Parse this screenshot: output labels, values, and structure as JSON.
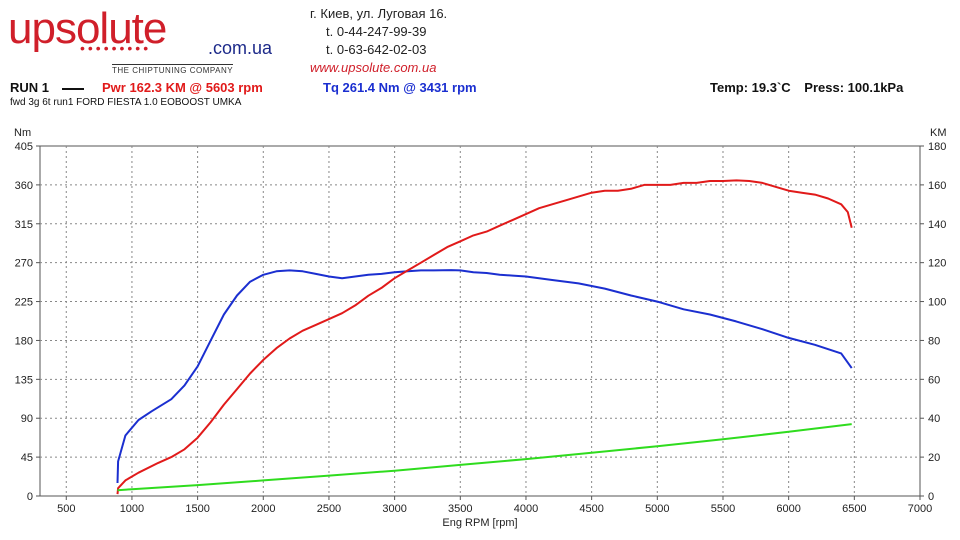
{
  "logo": {
    "text": "upsolute",
    "dots": "•••••••••",
    "domain": ".com.ua",
    "tagline": "THE CHIPTUNING COMPANY"
  },
  "contact": {
    "address": "г. Киев, ул. Луговая 16.",
    "phone1": "t. 0-44-247-99-39",
    "phone2": "t. 0-63-642-02-03",
    "website": "www.upsolute.com.ua"
  },
  "run_label": "RUN 1",
  "description": "fwd 3g 6t run1 FORD FIESTA 1.0 EOBOOST UMKA",
  "pwr_text": "Pwr  162.3 KM @ 5603 rpm",
  "tq_text": "Tq 261.4 Nm @ 3431 rpm",
  "temp_text": "Temp: 19.3`C",
  "press_text": "Press: 100.1kPa",
  "colors": {
    "power": "#e11a1a",
    "torque": "#1b2fd0",
    "loss": "#2fdc1e"
  },
  "chart_data": {
    "type": "line",
    "xlabel": "Eng RPM [rpm]",
    "y_left_label": "Nm",
    "y_right_label": "KM",
    "xlim": [
      300,
      7000
    ],
    "ylim_left": [
      0,
      405
    ],
    "ylim_right": [
      0,
      180
    ],
    "x_ticks": [
      500,
      1000,
      1500,
      2000,
      2500,
      3000,
      3500,
      4000,
      4500,
      5000,
      5500,
      6000,
      6500,
      7000
    ],
    "y_left_ticks": [
      0,
      45,
      90,
      135,
      180,
      225,
      270,
      315,
      360,
      405
    ],
    "y_right_ticks": [
      0,
      20,
      40,
      60,
      80,
      100,
      120,
      140,
      160,
      180
    ],
    "grid": true,
    "series": [
      {
        "name": "Tq",
        "axis": "left",
        "color_key": "torque",
        "points": [
          [
            890,
            15
          ],
          [
            895,
            40
          ],
          [
            950,
            70
          ],
          [
            1050,
            88
          ],
          [
            1150,
            98
          ],
          [
            1300,
            112
          ],
          [
            1400,
            128
          ],
          [
            1500,
            150
          ],
          [
            1600,
            180
          ],
          [
            1700,
            210
          ],
          [
            1800,
            232
          ],
          [
            1900,
            248
          ],
          [
            2000,
            256
          ],
          [
            2100,
            260
          ],
          [
            2200,
            261
          ],
          [
            2300,
            260
          ],
          [
            2400,
            257
          ],
          [
            2500,
            254
          ],
          [
            2600,
            252
          ],
          [
            2700,
            254
          ],
          [
            2800,
            256
          ],
          [
            2900,
            257
          ],
          [
            3000,
            259
          ],
          [
            3100,
            260
          ],
          [
            3200,
            261
          ],
          [
            3300,
            261
          ],
          [
            3431,
            261.4
          ],
          [
            3500,
            261
          ],
          [
            3600,
            259
          ],
          [
            3700,
            258
          ],
          [
            3800,
            256
          ],
          [
            3900,
            255
          ],
          [
            4000,
            254
          ],
          [
            4200,
            250
          ],
          [
            4400,
            246
          ],
          [
            4600,
            240
          ],
          [
            4800,
            232
          ],
          [
            5000,
            225
          ],
          [
            5200,
            216
          ],
          [
            5400,
            210
          ],
          [
            5600,
            202
          ],
          [
            5800,
            193
          ],
          [
            6000,
            183
          ],
          [
            6200,
            175
          ],
          [
            6400,
            165
          ],
          [
            6480,
            148
          ]
        ]
      },
      {
        "name": "Pwr",
        "axis": "right",
        "color_key": "power",
        "points": [
          [
            890,
            1
          ],
          [
            895,
            4
          ],
          [
            950,
            8
          ],
          [
            1050,
            12
          ],
          [
            1200,
            17
          ],
          [
            1300,
            20
          ],
          [
            1400,
            24
          ],
          [
            1500,
            30
          ],
          [
            1600,
            38
          ],
          [
            1700,
            47
          ],
          [
            1800,
            55
          ],
          [
            1900,
            63
          ],
          [
            2000,
            70
          ],
          [
            2100,
            76
          ],
          [
            2200,
            81
          ],
          [
            2300,
            85
          ],
          [
            2400,
            88
          ],
          [
            2500,
            91
          ],
          [
            2600,
            94
          ],
          [
            2700,
            98
          ],
          [
            2800,
            103
          ],
          [
            2900,
            107
          ],
          [
            3000,
            112
          ],
          [
            3100,
            116
          ],
          [
            3200,
            120
          ],
          [
            3300,
            124
          ],
          [
            3400,
            128
          ],
          [
            3500,
            131
          ],
          [
            3600,
            134
          ],
          [
            3700,
            136
          ],
          [
            3800,
            139
          ],
          [
            3900,
            142
          ],
          [
            4000,
            145
          ],
          [
            4100,
            148
          ],
          [
            4200,
            150
          ],
          [
            4300,
            152
          ],
          [
            4400,
            154
          ],
          [
            4500,
            156
          ],
          [
            4600,
            157
          ],
          [
            4700,
            157
          ],
          [
            4800,
            158
          ],
          [
            4900,
            160
          ],
          [
            5000,
            160
          ],
          [
            5100,
            160
          ],
          [
            5200,
            161
          ],
          [
            5300,
            161
          ],
          [
            5400,
            162
          ],
          [
            5500,
            162
          ],
          [
            5603,
            162.3
          ],
          [
            5700,
            162
          ],
          [
            5800,
            161
          ],
          [
            5900,
            159
          ],
          [
            6000,
            157
          ],
          [
            6100,
            156
          ],
          [
            6200,
            155
          ],
          [
            6300,
            153
          ],
          [
            6400,
            150
          ],
          [
            6450,
            146
          ],
          [
            6480,
            138
          ]
        ]
      },
      {
        "name": "Loss",
        "axis": "right",
        "color_key": "loss",
        "points": [
          [
            890,
            3
          ],
          [
            1000,
            3.5
          ],
          [
            1500,
            5.6
          ],
          [
            2000,
            8
          ],
          [
            2500,
            10.5
          ],
          [
            3000,
            13
          ],
          [
            3500,
            16
          ],
          [
            4000,
            19
          ],
          [
            4500,
            22.2
          ],
          [
            5000,
            25.6
          ],
          [
            5500,
            29.2
          ],
          [
            6000,
            33
          ],
          [
            6480,
            37
          ]
        ]
      }
    ]
  }
}
